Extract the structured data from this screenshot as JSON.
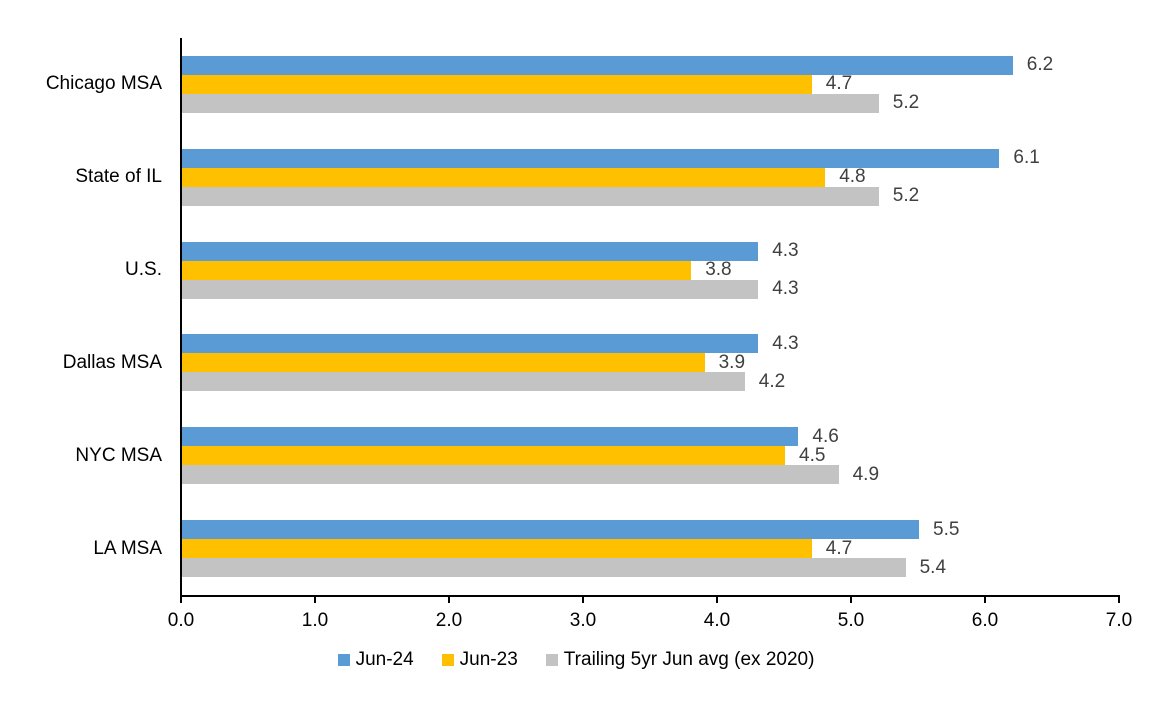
{
  "chart_data": {
    "type": "bar",
    "orientation": "horizontal",
    "title": "",
    "categories": [
      "Chicago MSA",
      "State of IL",
      "U.S.",
      "Dallas MSA",
      "NYC MSA",
      "LA MSA"
    ],
    "series": [
      {
        "name": "Jun-24",
        "color": "#5B9BD5",
        "values": [
          6.2,
          6.1,
          4.3,
          4.3,
          4.6,
          5.5
        ]
      },
      {
        "name": "Jun-23",
        "color": "#FFC000",
        "values": [
          4.7,
          4.8,
          3.8,
          3.9,
          4.5,
          4.7
        ]
      },
      {
        "name": "Trailing 5yr Jun avg (ex 2020)",
        "color": "#C3C3C3",
        "values": [
          5.2,
          5.2,
          4.3,
          4.2,
          4.9,
          5.4
        ]
      }
    ],
    "x_axis": {
      "min": 0,
      "max": 7,
      "tick_interval": 1,
      "tick_labels": [
        "0.0",
        "1.0",
        "2.0",
        "3.0",
        "4.0",
        "5.0",
        "6.0",
        "7.0"
      ]
    },
    "legend_position": "bottom",
    "grid": false,
    "data_labels_shown": true,
    "colors": {
      "value_label": "#404040",
      "axis": "#000000",
      "background": "#FFFFFF"
    }
  }
}
